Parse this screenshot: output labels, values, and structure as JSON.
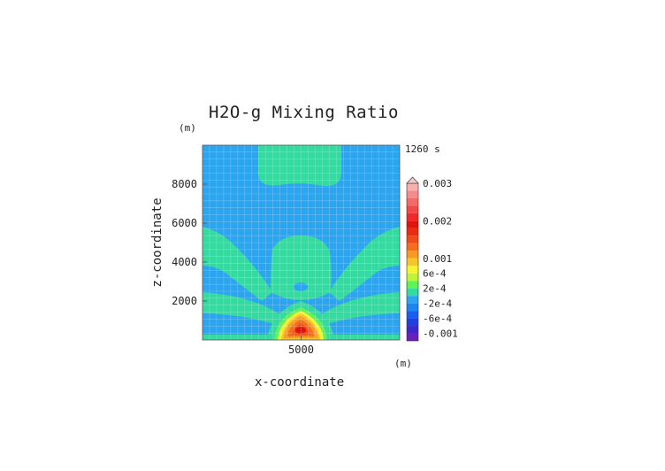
{
  "chart_data": {
    "type": "heatmap",
    "title": "H2O-g Mixing Ratio",
    "time_label": "1260 s",
    "xlabel": "x-coordinate",
    "ylabel": "z-coordinate",
    "x_unit": "(m)",
    "z_unit": "(m)",
    "xlim": [
      0,
      10000
    ],
    "ylim": [
      0,
      10000
    ],
    "x_ticks": [
      5000
    ],
    "y_ticks": [
      2000,
      4000,
      6000,
      8000
    ],
    "grid": true,
    "colorbar": {
      "labels": [
        "0.003",
        "0.002",
        "0.001",
        "6e-4",
        "2e-4",
        "-2e-4",
        "-6e-4",
        "-0.001"
      ],
      "label_values": [
        0.003,
        0.002,
        0.001,
        0.0006,
        0.0002,
        -0.0002,
        -0.0006,
        -0.001
      ],
      "range": [
        -0.0012,
        0.003
      ],
      "extend_top": true,
      "levels": [
        {
          "min": -0.0012,
          "max": -0.001,
          "color": "#6a1fb8"
        },
        {
          "min": -0.001,
          "max": -0.0008,
          "color": "#3a28c8"
        },
        {
          "min": -0.0008,
          "max": -0.0006,
          "color": "#1f3fe0"
        },
        {
          "min": -0.0006,
          "max": -0.0004,
          "color": "#1a5ef0"
        },
        {
          "min": -0.0004,
          "max": -0.0002,
          "color": "#1e84f2"
        },
        {
          "min": -0.0002,
          "max": 0.0,
          "color": "#2ca5f0"
        },
        {
          "min": 0.0,
          "max": 0.0002,
          "color": "#33dba0"
        },
        {
          "min": 0.0002,
          "max": 0.0004,
          "color": "#5ff25a"
        },
        {
          "min": 0.0004,
          "max": 0.0006,
          "color": "#bdf53a"
        },
        {
          "min": 0.0006,
          "max": 0.0008,
          "color": "#f4f52c"
        },
        {
          "min": 0.0008,
          "max": 0.001,
          "color": "#f7c52a"
        },
        {
          "min": 0.001,
          "max": 0.0012,
          "color": "#f79a26"
        },
        {
          "min": 0.0012,
          "max": 0.0014,
          "color": "#f56e1e"
        },
        {
          "min": 0.0014,
          "max": 0.0016,
          "color": "#f24a16"
        },
        {
          "min": 0.0016,
          "max": 0.0018,
          "color": "#ea2d12"
        },
        {
          "min": 0.0018,
          "max": 0.002,
          "color": "#e0140e"
        },
        {
          "min": 0.002,
          "max": 0.0022,
          "color": "#f02a2a"
        },
        {
          "min": 0.0022,
          "max": 0.0024,
          "color": "#f44848"
        },
        {
          "min": 0.0024,
          "max": 0.0026,
          "color": "#f26a6a"
        },
        {
          "min": 0.0026,
          "max": 0.0028,
          "color": "#f58c8c"
        },
        {
          "min": 0.0028,
          "max": 0.003,
          "color": "#f7b0b0"
        }
      ]
    },
    "regions": [
      {
        "name": "background",
        "value_range": [
          -0.0002,
          0.0
        ],
        "color": "#2ca5f0"
      },
      {
        "name": "upper-plume",
        "value_range": [
          0.0,
          0.0002
        ],
        "color": "#33dba0"
      },
      {
        "name": "mid-plume",
        "value_range": [
          0.0,
          0.0002
        ],
        "color": "#33dba0"
      },
      {
        "name": "left-arms",
        "value_range": [
          0.0,
          0.0002
        ],
        "color": "#33dba0"
      },
      {
        "name": "right-arms",
        "value_range": [
          0.0,
          0.0002
        ],
        "color": "#33dba0"
      },
      {
        "name": "surface-band",
        "value_range": [
          0.0,
          0.0002
        ],
        "color": "#33dba0"
      },
      {
        "name": "core",
        "peak_value": 0.0018,
        "center": [
          5000,
          400
        ]
      }
    ]
  }
}
